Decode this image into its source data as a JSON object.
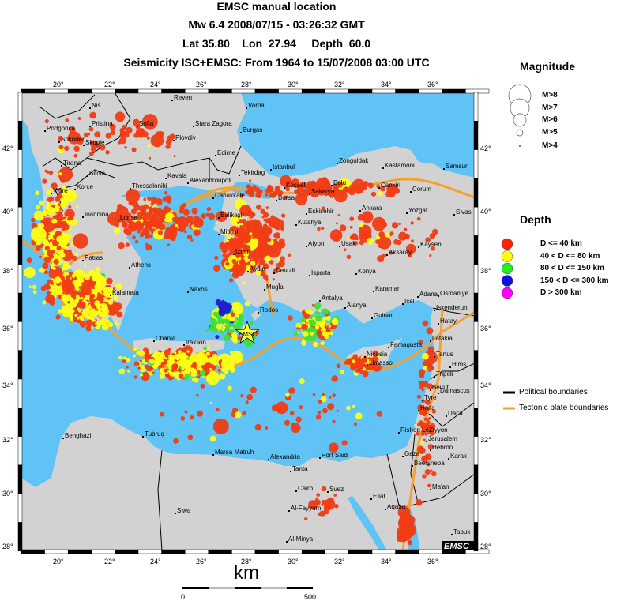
{
  "header": {
    "title": "EMSC manual location",
    "event": "Mw 6.4  2008/07/15 - 03:26:32 GMT",
    "location": "Lat 35.80    Lon  27.94     Depth  60.0",
    "seismicity": "Seismicity ISC+EMSC: From 1964 to 15/07/2008 03:00 UTC"
  },
  "map": {
    "event_star_label": "EMSC",
    "logo": "EMSC",
    "lon_ticks": [
      "20°",
      "22°",
      "24°",
      "26°",
      "28°",
      "30°",
      "32°",
      "34°",
      "36°"
    ],
    "lat_ticks": [
      "42°",
      "40°",
      "38°",
      "36°",
      "34°",
      "32°",
      "30°",
      "28°"
    ],
    "colors": {
      "land": "#d2d2d2",
      "sea": "#5fc3f5",
      "political": "#000000",
      "tectonic": "#f7a030"
    },
    "cities": [
      "Nis",
      "Reven",
      "Varna",
      "Pristina",
      "Sofia",
      "Podgorica",
      "Stara Zagora",
      "Burgas",
      "Shkoder",
      "Skopje",
      "Plovdiv",
      "Edirne",
      "Tirana",
      "Bitola",
      "Thessaloniki",
      "Kavala",
      "Alexandroupoli",
      "Tekirdag",
      "Istanbul",
      "Zonguldak",
      "Kastamonu",
      "Samsun",
      "Kocaeli",
      "Sakarya",
      "Bolu",
      "Korce",
      "Vlore",
      "Ioannina",
      "Larisa",
      "Canakkale",
      "Bursa",
      "Eskisehir",
      "Cankiri",
      "Corum",
      "Ankara",
      "Yozgat",
      "Sivas",
      "Balikesir",
      "Kutahya",
      "Mitilini",
      "Izmir",
      "Afyon",
      "Usak",
      "Aksaray",
      "Kayseri",
      "Patras",
      "Athens",
      "Aydin",
      "Denizli",
      "Isparta",
      "Konya",
      "Kalamata",
      "Naxos",
      "Mugla",
      "Karaman",
      "Adana",
      "Osmaniye",
      "Antalya",
      "Alanya",
      "Icel",
      "Iskenderun",
      "Hatay",
      "Rodos",
      "Gulnar",
      "Latakia",
      "Chania",
      "Iraklion",
      "Nicosia",
      "Famagusta",
      "Limassol",
      "Tartus",
      "Hims",
      "Tripoli",
      "Beirut",
      "Damascus",
      "Tyre",
      "Haifa",
      "Dar'a",
      "Rishon LeZiyyon",
      "Jerusalem",
      "Gaza",
      "Hebron",
      "Beersheba",
      "Karak",
      "Benghazi",
      "Tubruq",
      "Marsa Matruh",
      "Alexandria",
      "Port Said",
      "Tanta",
      "Cairo",
      "Suez",
      "Al-Fayyum",
      "Siwa",
      "Ma'an",
      "Eilat",
      "Aqaba",
      "Al-Minya",
      "Tabuk"
    ]
  },
  "legend": {
    "magnitude_title": "Magnitude",
    "magnitudes": [
      "M>8",
      "M>7",
      "M>6",
      "M>5",
      "M>4"
    ],
    "depth_title": "Depth",
    "depths": [
      {
        "label": "D <= 40 km",
        "color": "#ff2200"
      },
      {
        "label": "40 < D <= 80 km",
        "color": "#ffff00"
      },
      {
        "label": "80 < D <= 150 km",
        "color": "#22ee22"
      },
      {
        "label": "150 < D <= 300 km",
        "color": "#1111dd"
      },
      {
        "label": "D > 300 km",
        "color": "#ff00ff"
      }
    ],
    "boundaries": [
      {
        "label": "Political boundaries",
        "color": "#000000"
      },
      {
        "label": "Tectonic plate boundaries",
        "color": "#f7a030"
      }
    ]
  },
  "scale": {
    "unit": "km",
    "start": "0",
    "end": "500"
  }
}
